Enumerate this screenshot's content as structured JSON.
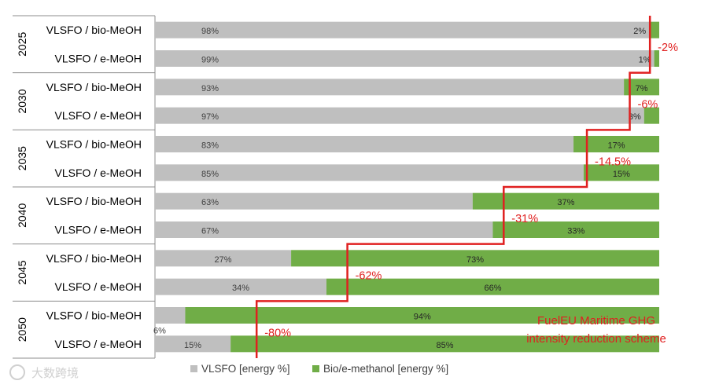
{
  "chart_data": {
    "type": "bar",
    "orientation": "horizontal",
    "stacked": true,
    "years": [
      "2025",
      "2030",
      "2035",
      "2040",
      "2045",
      "2050"
    ],
    "fuel_labels": [
      "VLSFO / bio-MeOH",
      "VLSFO / e-MeOH"
    ],
    "series": [
      {
        "name": "VLSFO [energy %]",
        "color": "#bfbfbf",
        "values": [
          98,
          99,
          93,
          97,
          83,
          85,
          63,
          67,
          27,
          34,
          6,
          15
        ],
        "labels": [
          "98%",
          "99%",
          "93%",
          "97%",
          "83%",
          "85%",
          "63%",
          "67%",
          "27%",
          "34%",
          "6%",
          "15%"
        ]
      },
      {
        "name": "Bio/e-methanol [energy %]",
        "color": "#70ad47",
        "values": [
          2,
          1,
          7,
          3,
          17,
          15,
          37,
          33,
          73,
          66,
          94,
          85
        ],
        "labels": [
          "2%",
          "1%",
          "7%",
          "3%",
          "17%",
          "15%",
          "37%",
          "33%",
          "73%",
          "66%",
          "94%",
          "85%"
        ]
      }
    ],
    "xlim": [
      0,
      100
    ],
    "reduction_steps": [
      {
        "year": "2025",
        "label": "-2%",
        "value": 2
      },
      {
        "year": "2030",
        "label": "-6%",
        "value": 6
      },
      {
        "year": "2035",
        "label": "-14.5%",
        "value": 14.5
      },
      {
        "year": "2040",
        "label": "-31%",
        "value": 31
      },
      {
        "year": "2045",
        "label": "-62%",
        "value": 62
      },
      {
        "year": "2050",
        "label": "-80%",
        "value": 80
      }
    ],
    "annotation": [
      "FuelEU Maritime GHG",
      "intensity reduction scheme"
    ],
    "step_line_color": "#e02020",
    "legend_position": "bottom",
    "grid": false
  },
  "watermark": "大数跨境"
}
